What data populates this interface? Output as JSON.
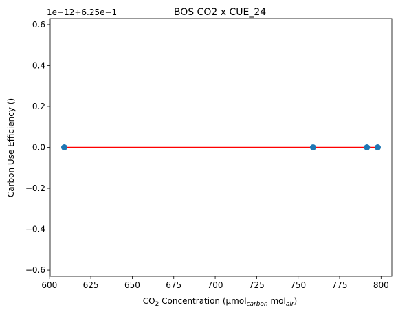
{
  "chart_data": {
    "type": "scatter",
    "title": "BOS CO2 x CUE_24",
    "xlabel": {
      "prefix": "CO",
      "sub1": "2",
      "mid": " Concentration (µmol",
      "sub2": "carbon",
      "mid2": " mol",
      "sub3": "air",
      "suffix": ")"
    },
    "ylabel": "Carbon Use Efficiency ()",
    "y_offset_label": "1e−12+6.25e−1",
    "xlim": [
      600.5,
      806.5
    ],
    "ylim": [
      -0.63,
      0.63
    ],
    "xticks": [
      600,
      625,
      650,
      675,
      700,
      725,
      750,
      775,
      800
    ],
    "xtick_labels": [
      "600",
      "625",
      "650",
      "675",
      "700",
      "725",
      "750",
      "775",
      "800"
    ],
    "yticks": [
      -0.6,
      -0.4,
      -0.2,
      0.0,
      0.2,
      0.4,
      0.6
    ],
    "ytick_labels": [
      "−0.6",
      "−0.4",
      "−0.2",
      "0.0",
      "0.2",
      "0.4",
      "0.6"
    ],
    "points": {
      "x": [
        609,
        759,
        791.5,
        798
      ],
      "y": [
        0.0,
        0.0,
        0.0,
        0.0
      ],
      "color": "#1f77b4"
    },
    "fit_line": {
      "x": [
        609,
        798
      ],
      "y": [
        0.0,
        0.0
      ],
      "color": "#ff0000"
    },
    "grid": false
  }
}
